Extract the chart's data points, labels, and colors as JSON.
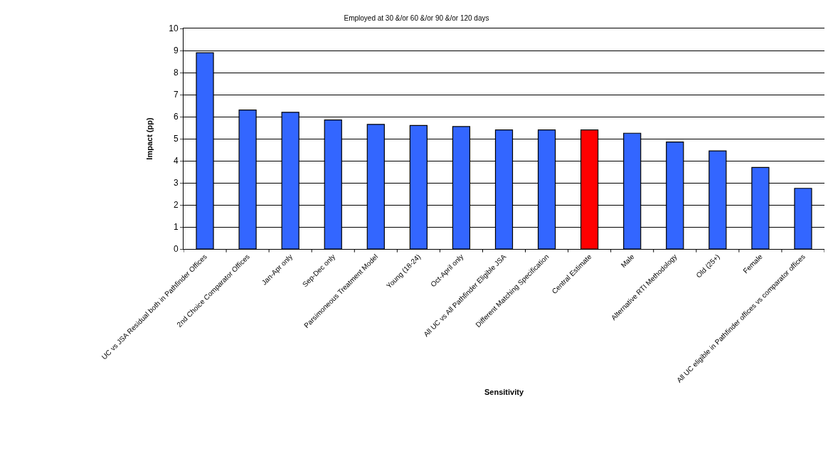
{
  "chart_data": {
    "type": "bar",
    "title": "Employed at 30 &/or 60 &/or 90 &/or 120 days",
    "xlabel": "Sensitivity",
    "ylabel": "Impact (pp)",
    "categories": [
      "UC vs JSA Residual both in Pathfinder Offices",
      "2nd Choice Comparator Offices",
      "Jan-Apr only",
      "Sep-Dec only",
      "Parsimoneous Treatment Model",
      "Young (18-24)",
      "Oct-April only",
      "All UC vs All Pathfinder Eligible JSA",
      "Different Matching Specification",
      "Central Estimate",
      "Male",
      "Alternative RTI Methodology",
      "Old (25+)",
      "Female",
      "All UC eligible in Pathfinder offices vs comparator offices"
    ],
    "values": [
      8.9,
      6.3,
      6.2,
      5.85,
      5.65,
      5.6,
      5.55,
      5.4,
      5.4,
      5.4,
      5.25,
      4.85,
      4.45,
      3.7,
      2.75
    ],
    "colors": [
      "#3366ff",
      "#3366ff",
      "#3366ff",
      "#3366ff",
      "#3366ff",
      "#3366ff",
      "#3366ff",
      "#3366ff",
      "#3366ff",
      "#ff0000",
      "#3366ff",
      "#3366ff",
      "#3366ff",
      "#3366ff",
      "#3366ff"
    ],
    "ylim": [
      0,
      10
    ],
    "yticks": [
      0,
      1,
      2,
      3,
      4,
      5,
      6,
      7,
      8,
      9,
      10
    ],
    "grid": "y",
    "legend": false
  }
}
